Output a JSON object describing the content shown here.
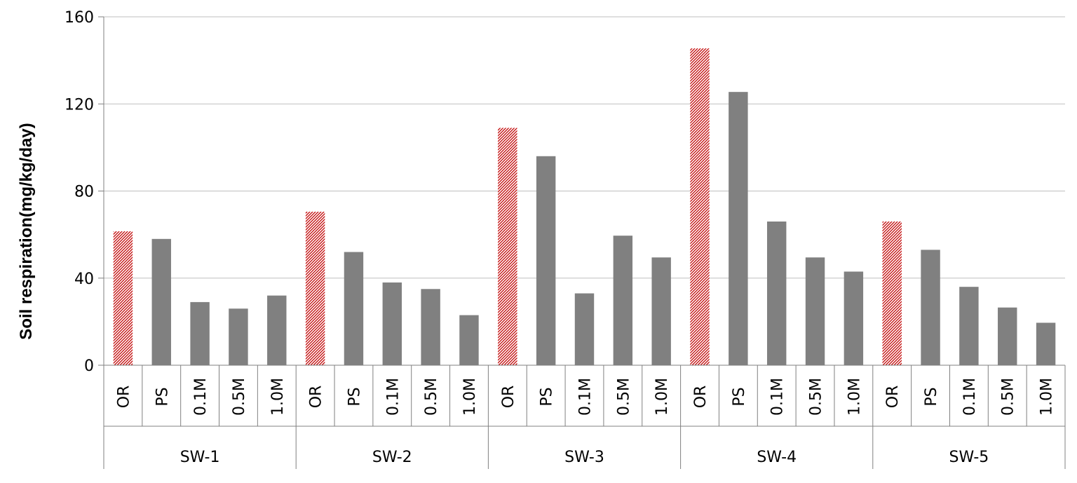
{
  "chart_data": {
    "type": "bar",
    "ylabel": "Soil respiration(mg/kg/day)",
    "ylim": [
      0,
      160
    ],
    "yticks": [
      "0",
      "40",
      "80",
      "120",
      "160"
    ],
    "grid": true,
    "groups": [
      {
        "name": "SW-1",
        "bars": [
          {
            "label": "OR",
            "value": 61.5
          },
          {
            "label": "PS",
            "value": 58
          },
          {
            "label": "0.1M",
            "value": 29
          },
          {
            "label": "0.5M",
            "value": 26
          },
          {
            "label": "1.0M",
            "value": 32
          }
        ]
      },
      {
        "name": "SW-2",
        "bars": [
          {
            "label": "OR",
            "value": 70.5
          },
          {
            "label": "PS",
            "value": 52
          },
          {
            "label": "0.1M",
            "value": 38
          },
          {
            "label": "0.5M",
            "value": 35
          },
          {
            "label": "1.0M",
            "value": 23
          }
        ]
      },
      {
        "name": "SW-3",
        "bars": [
          {
            "label": "OR",
            "value": 109
          },
          {
            "label": "PS",
            "value": 96
          },
          {
            "label": "0.1M",
            "value": 33
          },
          {
            "label": "0.5M",
            "value": 59.5
          },
          {
            "label": "1.0M",
            "value": 49.5
          }
        ]
      },
      {
        "name": "SW-4",
        "bars": [
          {
            "label": "OR",
            "value": 145.5
          },
          {
            "label": "PS",
            "value": 125.5
          },
          {
            "label": "0.1M",
            "value": 66
          },
          {
            "label": "0.5M",
            "value": 49.5
          },
          {
            "label": "1.0M",
            "value": 43
          }
        ]
      },
      {
        "name": "SW-5",
        "bars": [
          {
            "label": "OR",
            "value": 66
          },
          {
            "label": "PS",
            "value": 53
          },
          {
            "label": "0.1M",
            "value": 36
          },
          {
            "label": "0.5M",
            "value": 26.5
          },
          {
            "label": "1.0M",
            "value": 19.5
          }
        ]
      }
    ],
    "colors": {
      "highlight_bar": "#c00000",
      "bar": "#808080",
      "grid": "#bfbfbf",
      "axis": "#808080"
    },
    "highlight_label": "OR"
  }
}
